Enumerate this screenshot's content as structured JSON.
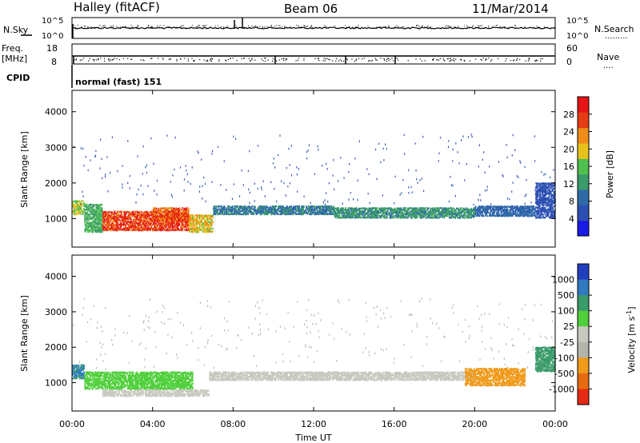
{
  "header": {
    "station": "Halley (fitACF)",
    "beam": "Beam 06",
    "date": "11/Mar/2014"
  },
  "nsky_panel": {
    "left_label": "N.Sky",
    "right_label": "N.Search",
    "right_sub": ".........",
    "tick_top": "10^5",
    "tick_bottom": "10^0",
    "right_tick_top": "10^5",
    "right_tick_bottom": "10^0"
  },
  "freq_panel": {
    "left_label_1": "Freq.",
    "left_label_2": "[MHz]",
    "right_label": "Nave",
    "right_sub": "....",
    "left_ticks": [
      "18",
      "8"
    ],
    "right_ticks": [
      "60",
      "0"
    ]
  },
  "cpid": {
    "label": "CPID",
    "value": "normal (fast) 151"
  },
  "colors": {
    "power_scale": [
      "#1a1ae6",
      "#2b4fb3",
      "#2f6aa8",
      "#3b9b6a",
      "#4fbf4f",
      "#e6c21a",
      "#f08c1a",
      "#e63c14",
      "#e61414"
    ],
    "velocity_scale": [
      "#1f3fbf",
      "#2f7ac0",
      "#3a9b6a",
      "#4fcf3a",
      "#c8c8c0",
      "#b4b4ac",
      "#f09a1a",
      "#e66a10",
      "#e62a14",
      "#e61414"
    ]
  },
  "chart_data": [
    {
      "type": "heatmap",
      "parameter": "Power",
      "ylabel": "Slant Range [km]",
      "ylim": [
        200,
        4600
      ],
      "yticks": [
        "1000",
        "2000",
        "3000",
        "4000"
      ],
      "xlim": [
        "00:00",
        "24:00"
      ],
      "colorbar_label": "Power [dB]",
      "colorbar_range": [
        0,
        32
      ],
      "colorbar_ticks": [
        "4",
        "8",
        "12",
        "16",
        "20",
        "24",
        "28"
      ],
      "regions": [
        {
          "t_start": 0.0,
          "t_end": 0.6,
          "r_min": 1100,
          "r_max": 1500,
          "value": 18
        },
        {
          "t_start": 0.6,
          "t_end": 1.5,
          "r_min": 600,
          "r_max": 1400,
          "value": 14
        },
        {
          "t_start": 1.5,
          "t_end": 5.8,
          "r_min": 650,
          "r_max": 1200,
          "value": 28
        },
        {
          "t_start": 4.0,
          "t_end": 5.8,
          "r_min": 900,
          "r_max": 1300,
          "value": 26
        },
        {
          "t_start": 5.8,
          "t_end": 7.0,
          "r_min": 600,
          "r_max": 1100,
          "value": 20
        },
        {
          "t_start": 7.0,
          "t_end": 13.0,
          "r_min": 1100,
          "r_max": 1350,
          "value": 10
        },
        {
          "t_start": 13.0,
          "t_end": 20.0,
          "r_min": 1000,
          "r_max": 1300,
          "value": 12
        },
        {
          "t_start": 20.0,
          "t_end": 23.0,
          "r_min": 1050,
          "r_max": 1350,
          "value": 8
        },
        {
          "t_start": 23.0,
          "t_end": 24.0,
          "r_min": 1000,
          "r_max": 2000,
          "value": 6
        }
      ]
    },
    {
      "type": "heatmap",
      "parameter": "Velocity",
      "ylabel": "Slant Range [km]",
      "ylim": [
        200,
        4600
      ],
      "yticks": [
        "1000",
        "2000",
        "3000",
        "4000"
      ],
      "xlabel": "Time UT",
      "xticks": [
        "00:00",
        "04:00",
        "08:00",
        "12:00",
        "16:00",
        "20:00",
        "00:00"
      ],
      "colorbar_label": "Velocity [m s^-1]",
      "colorbar_ticks": [
        "1000",
        "500",
        "100",
        "25",
        "-25",
        "-100",
        "-500",
        "-1000"
      ],
      "regions": [
        {
          "t_start": 0.0,
          "t_end": 0.6,
          "r_min": 1100,
          "r_max": 1500,
          "value": 300
        },
        {
          "t_start": 0.6,
          "t_end": 6.0,
          "r_min": 800,
          "r_max": 1300,
          "value": 120
        },
        {
          "t_start": 1.5,
          "t_end": 6.8,
          "r_min": 600,
          "r_max": 800,
          "value": 0
        },
        {
          "t_start": 6.8,
          "t_end": 20.0,
          "r_min": 1050,
          "r_max": 1300,
          "value": 0
        },
        {
          "t_start": 19.5,
          "t_end": 22.5,
          "r_min": 900,
          "r_max": 1400,
          "value": -150
        },
        {
          "t_start": 23.0,
          "t_end": 24.0,
          "r_min": 1300,
          "r_max": 2000,
          "value": 200
        }
      ]
    }
  ],
  "axes": {
    "xlabel": "Time UT",
    "xticks": [
      "00:00",
      "04:00",
      "08:00",
      "12:00",
      "16:00",
      "20:00",
      "00:00"
    ],
    "ylabel": "Slant Range [km]",
    "yticks": [
      "1000",
      "2000",
      "3000",
      "4000"
    ],
    "power_label": "Power [dB]",
    "power_ticks": [
      "4",
      "8",
      "12",
      "16",
      "20",
      "24",
      "28"
    ],
    "velocity_label": "Velocity [m s",
    "velocity_sup": "-1",
    "velocity_close": "]",
    "velocity_ticks": [
      "1000",
      "500",
      "100",
      "25",
      "-25",
      "-100",
      "-500",
      "-1000"
    ]
  }
}
